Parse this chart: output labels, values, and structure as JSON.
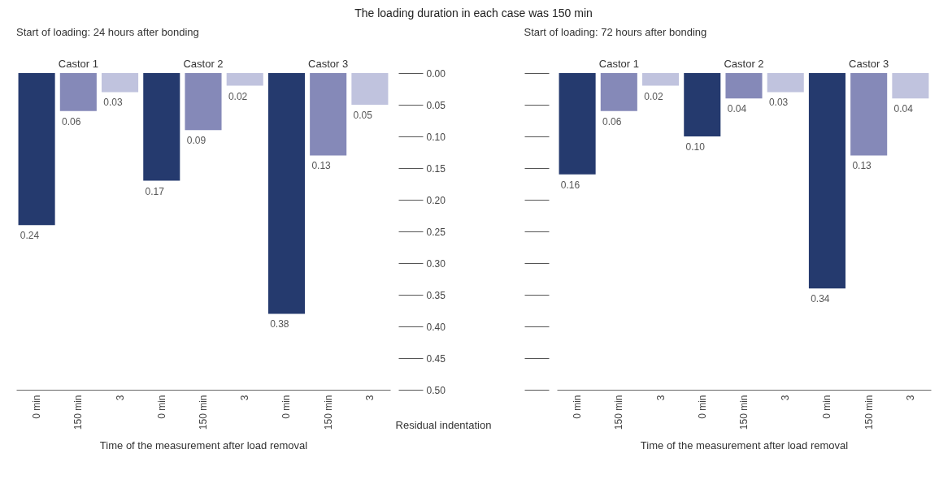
{
  "chart_data": [
    {
      "type": "bar",
      "title": "The loading duration in each case was 150 min",
      "subtitle": "Start of loading: 24 hours after bonding",
      "xlabel": "Time of the measurement after load removal",
      "ylabel": "Residual indentation",
      "categories": [
        "0 min",
        "150 min",
        "3",
        "0 min",
        "150 min",
        "3",
        "0 min",
        "150 min",
        "3"
      ],
      "values": [
        0.24,
        0.06,
        0.03,
        0.17,
        0.09,
        0.02,
        0.38,
        0.13,
        0.05
      ],
      "value_labels": [
        "0.24",
        "0.06",
        "0.03",
        "0.17",
        "0.09",
        "0.02",
        "0.38",
        "0.13",
        "0.05"
      ],
      "colors": [
        "#253a6e",
        "#8589b8",
        "#c0c3de",
        "#253a6e",
        "#8589b8",
        "#c0c3de",
        "#253a6e",
        "#8589b8",
        "#c0c3de"
      ],
      "annotations": [
        "Castor 1",
        "Castor 2",
        "Castor 3"
      ],
      "ylim": [
        0.5,
        0
      ],
      "yticks": [
        {
          "value": 0,
          "label": "0.00"
        },
        0.05,
        {
          "value": 0.1,
          "label": "0.10"
        },
        0.15,
        {
          "value": 0.2,
          "label": "0.20"
        },
        0.25,
        {
          "value": 0.3,
          "label": "0.30"
        },
        0.35,
        {
          "value": 0.4,
          "label": "0.40"
        },
        0.45,
        {
          "value": 0.5,
          "label": "0.50"
        }
      ]
    },
    {
      "type": "bar",
      "subtitle": "Start of loading: 72 hours after bonding",
      "xlabel": "Time of the measurement after load removal",
      "categories": [
        "0 min",
        "150 min",
        "3",
        "0 min",
        "150 min",
        "3",
        "0 min",
        "150 min",
        "3"
      ],
      "values": [
        0.16,
        0.06,
        0.02,
        0.1,
        0.04,
        0.03,
        0.34,
        0.13,
        0.04
      ],
      "value_labels": [
        "0.16",
        "0.06",
        "0.02",
        "0.10",
        "0.04",
        "0.03",
        "0.34",
        "0.13",
        "0.04"
      ],
      "colors": [
        "#253a6e",
        "#8589b8",
        "#c0c3de",
        "#253a6e",
        "#8589b8",
        "#c0c3de",
        "#253a6e",
        "#8589b8",
        "#c0c3de"
      ],
      "annotations": [
        "Castor 1",
        "Castor 2",
        "Castor 3"
      ],
      "ylim": [
        0.5,
        0
      ],
      "yticks": [
        0,
        0.05,
        0.1,
        0.15,
        0.2,
        0.25,
        0.3,
        0.35,
        0.4,
        0.45,
        0.5
      ],
      "tick_labels": "x"
    }
  ]
}
